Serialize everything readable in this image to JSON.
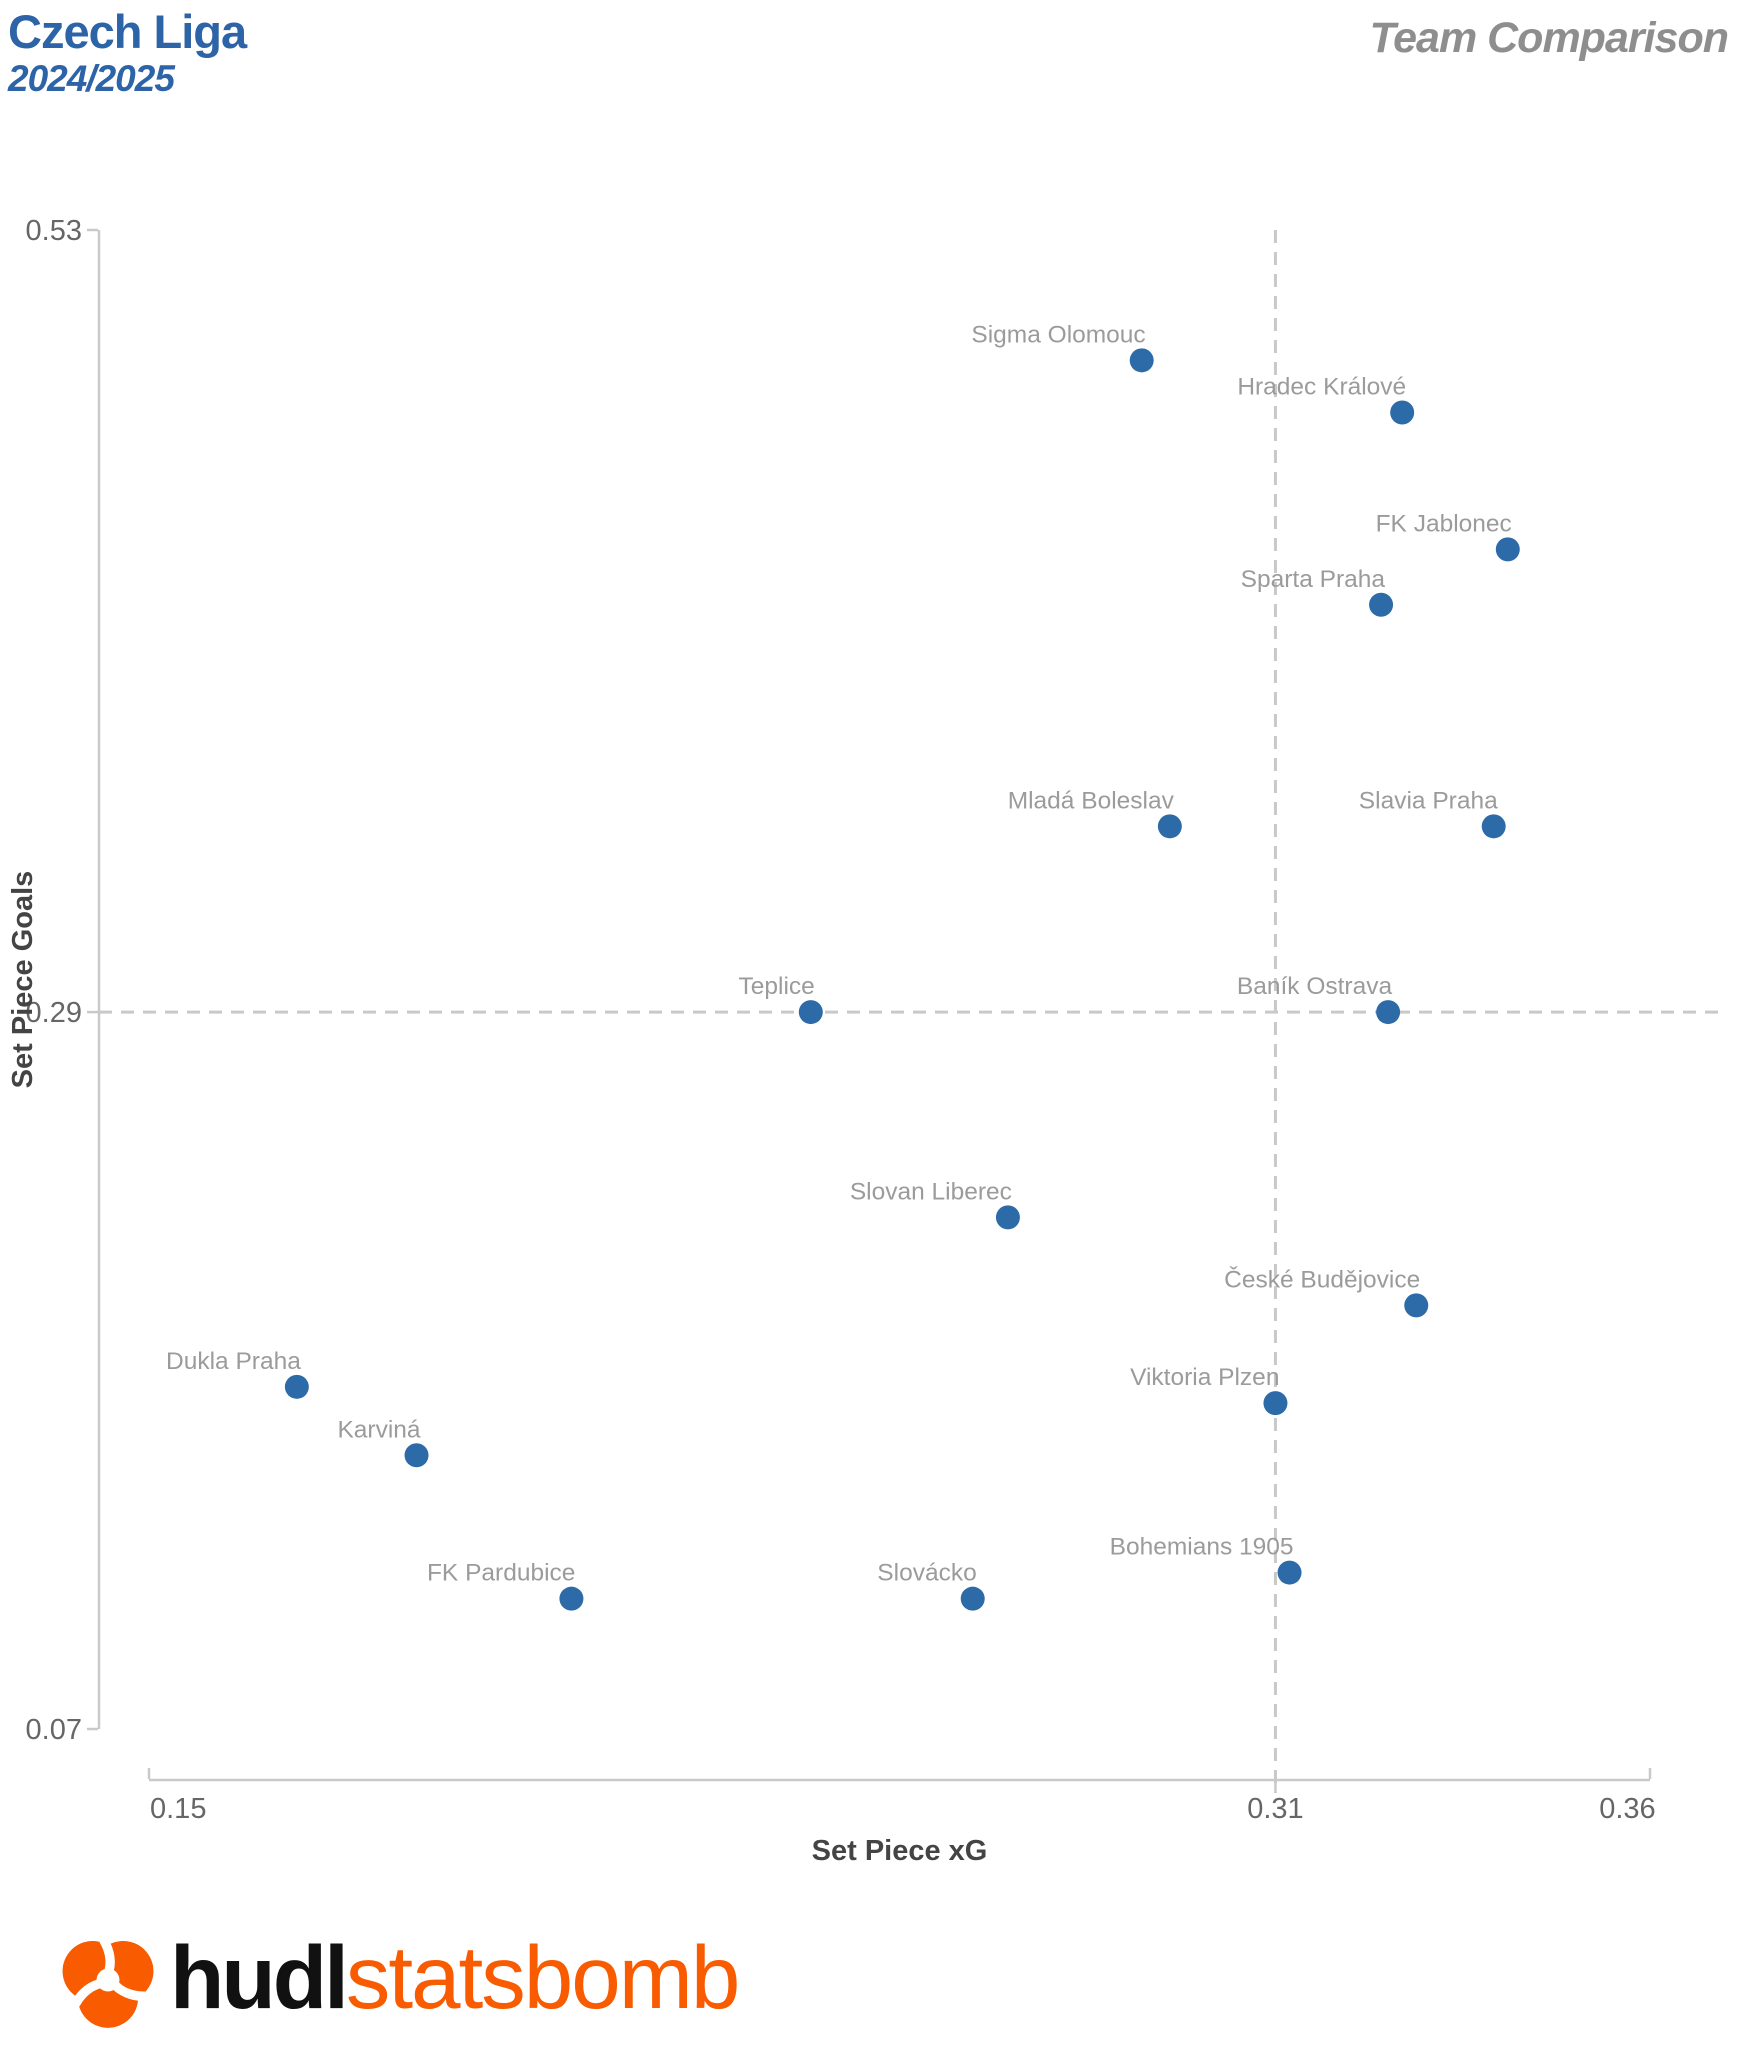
{
  "header": {
    "title": "Czech Liga",
    "subtitle": "2024/2025",
    "corner_title": "Team Comparison"
  },
  "chart_data": {
    "type": "scatter",
    "title": "Czech Liga 2024/2025 Team Comparison",
    "xlabel": "Set Piece xG",
    "ylabel": "Set Piece Goals",
    "xlim": [
      0.15,
      0.3632
    ],
    "ylim": [
      0.07,
      0.53
    ],
    "grid": false,
    "x_ticks": [
      {
        "value": 0.15,
        "label": "0.15"
      },
      {
        "value": 0.31,
        "label": "0.31"
      },
      {
        "value": 0.36,
        "label": "0.36"
      }
    ],
    "y_ticks": [
      {
        "value": 0.53,
        "label": "0.53"
      },
      {
        "value": 0.29,
        "label": "0.29"
      },
      {
        "value": 0.07,
        "label": "0.07"
      }
    ],
    "reference_lines": {
      "x_value": 0.31,
      "y_value": 0.29,
      "style": "dashed"
    },
    "points": [
      {
        "team": "Sigma Olomouc",
        "x": 0.291,
        "y": 0.49
      },
      {
        "team": "Hradec Králové",
        "x": 0.328,
        "y": 0.474
      },
      {
        "team": "FK Jablonec",
        "x": 0.343,
        "y": 0.432
      },
      {
        "team": "Sparta Praha",
        "x": 0.325,
        "y": 0.415
      },
      {
        "team": "Mladá Boleslav",
        "x": 0.295,
        "y": 0.347
      },
      {
        "team": "Slavia Praha",
        "x": 0.341,
        "y": 0.347
      },
      {
        "team": "Teplice",
        "x": 0.244,
        "y": 0.29
      },
      {
        "team": "Baník Ostrava",
        "x": 0.326,
        "y": 0.29
      },
      {
        "team": "Slovan Liberec",
        "x": 0.272,
        "y": 0.227
      },
      {
        "team": "České Budějovice",
        "x": 0.33,
        "y": 0.2
      },
      {
        "team": "Dukla Praha",
        "x": 0.171,
        "y": 0.175
      },
      {
        "team": "Viktoria Plzen",
        "x": 0.31,
        "y": 0.17
      },
      {
        "team": "Karviná",
        "x": 0.188,
        "y": 0.154
      },
      {
        "team": "Bohemians 1905",
        "x": 0.312,
        "y": 0.118
      },
      {
        "team": "FK Pardubice",
        "x": 0.21,
        "y": 0.11
      },
      {
        "team": "Slovácko",
        "x": 0.267,
        "y": 0.11
      }
    ]
  },
  "colors": {
    "title_blue": "#2d64a8",
    "corner_gray": "#8e8e8e",
    "point_blue": "#2d6ba8",
    "point_label_gray": "#9b9b9b",
    "tick_label_gray": "#666666",
    "axis_title_gray": "#444444",
    "axis_line_gray": "#c9c9c9",
    "logo_orange": "#f85b00",
    "logo_black": "#111111"
  },
  "footer": {
    "logo_text_bold": "hudl",
    "logo_text_light": "statsbomb"
  }
}
